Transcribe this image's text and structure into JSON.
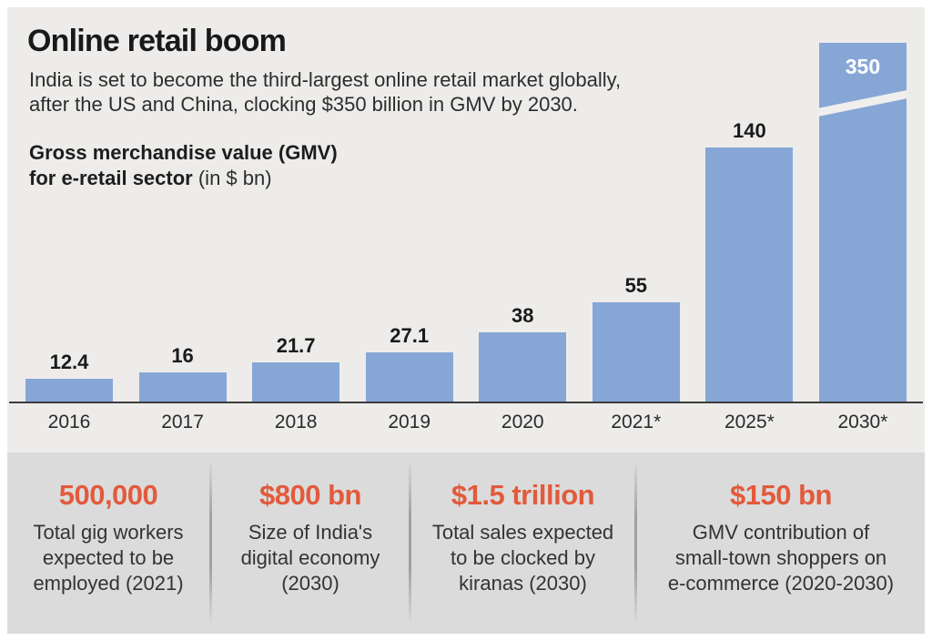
{
  "header": {
    "title": "Online retail boom",
    "subtitle": "India is set to become the third-largest online retail market globally,\nafter the US and China, clocking $350 billion in GMV by 2030.",
    "metric_line1": "Gross merchandise value (GMV)",
    "metric_line2_bold": "for e-retail sector",
    "metric_line2_normal": "(in $ bn)"
  },
  "chart_data": {
    "type": "bar",
    "title": "Gross merchandise value (GMV) for e-retail sector",
    "unit": "$ bn",
    "categories": [
      "2016",
      "2017",
      "2018",
      "2019",
      "2020",
      "2021*",
      "2025*",
      "2030*"
    ],
    "values": [
      12.4,
      16,
      21.7,
      27.1,
      38,
      55,
      140,
      350
    ],
    "value_labels": [
      "12.4",
      "16",
      "21.7",
      "27.1",
      "38",
      "55",
      "140",
      "350"
    ],
    "bar_color": "#86a7d6",
    "axis_break": {
      "category": "2030*",
      "note": "2030 bar is truncated with a diagonal white break stripe; its 350 label is printed in white inside the bar top"
    },
    "ylim": [
      0,
      350
    ],
    "grid": false,
    "legend": "none"
  },
  "stats": [
    {
      "value": "500,000",
      "label": "Total gig workers\nexpected to be\nemployed (2021)"
    },
    {
      "value": "$800 bn",
      "label": "Size of India's\ndigital economy\n(2030)"
    },
    {
      "value": "$1.5 trillion",
      "label": "Total sales expected\nto be clocked by\nkiranas (2030)"
    },
    {
      "value": "$150 bn",
      "label": "GMV contribution of\nsmall-town shoppers on\ne-commerce (2020-2030)"
    }
  ],
  "colors": {
    "chart_background": "#edecea",
    "stats_background": "#dbdbdb",
    "bar_blue": "#86a7d6",
    "accent_orange": "#e25a3c",
    "text_dark": "#1a1a1a"
  }
}
